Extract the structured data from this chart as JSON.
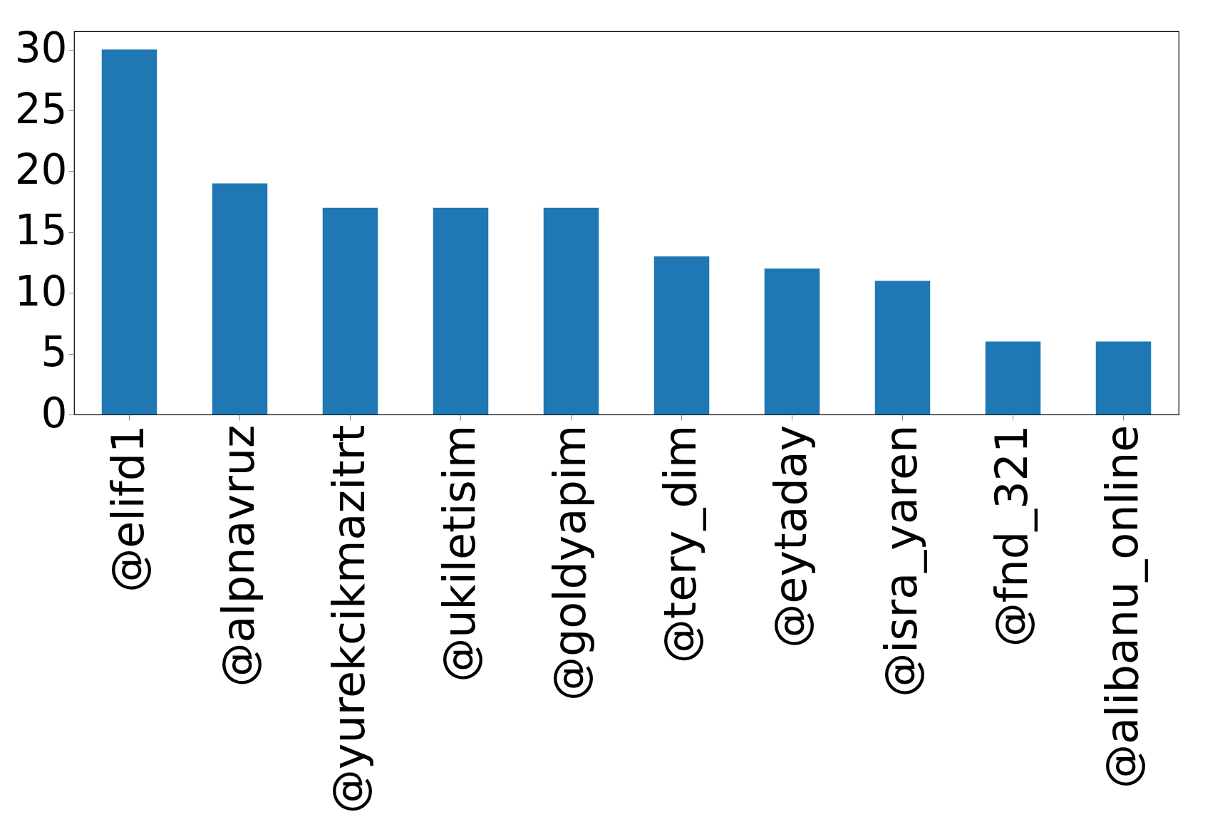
{
  "chart_data": {
    "type": "bar",
    "categories": [
      "@elifd1",
      "@alpnavruz",
      "@yurekcikmazitrt",
      "@ukiletisim",
      "@goldyapim",
      "@tery_dim",
      "@eytaday",
      "@isra_yaren",
      "@fnd_321",
      "@alibanu_online"
    ],
    "values": [
      30,
      19,
      17,
      17,
      17,
      13,
      12,
      11,
      6,
      6
    ],
    "color": "#1f77b4",
    "ylim": [
      0,
      31.5
    ],
    "yticks": [
      0,
      5,
      10,
      15,
      20,
      25,
      30
    ],
    "grid": false
  }
}
